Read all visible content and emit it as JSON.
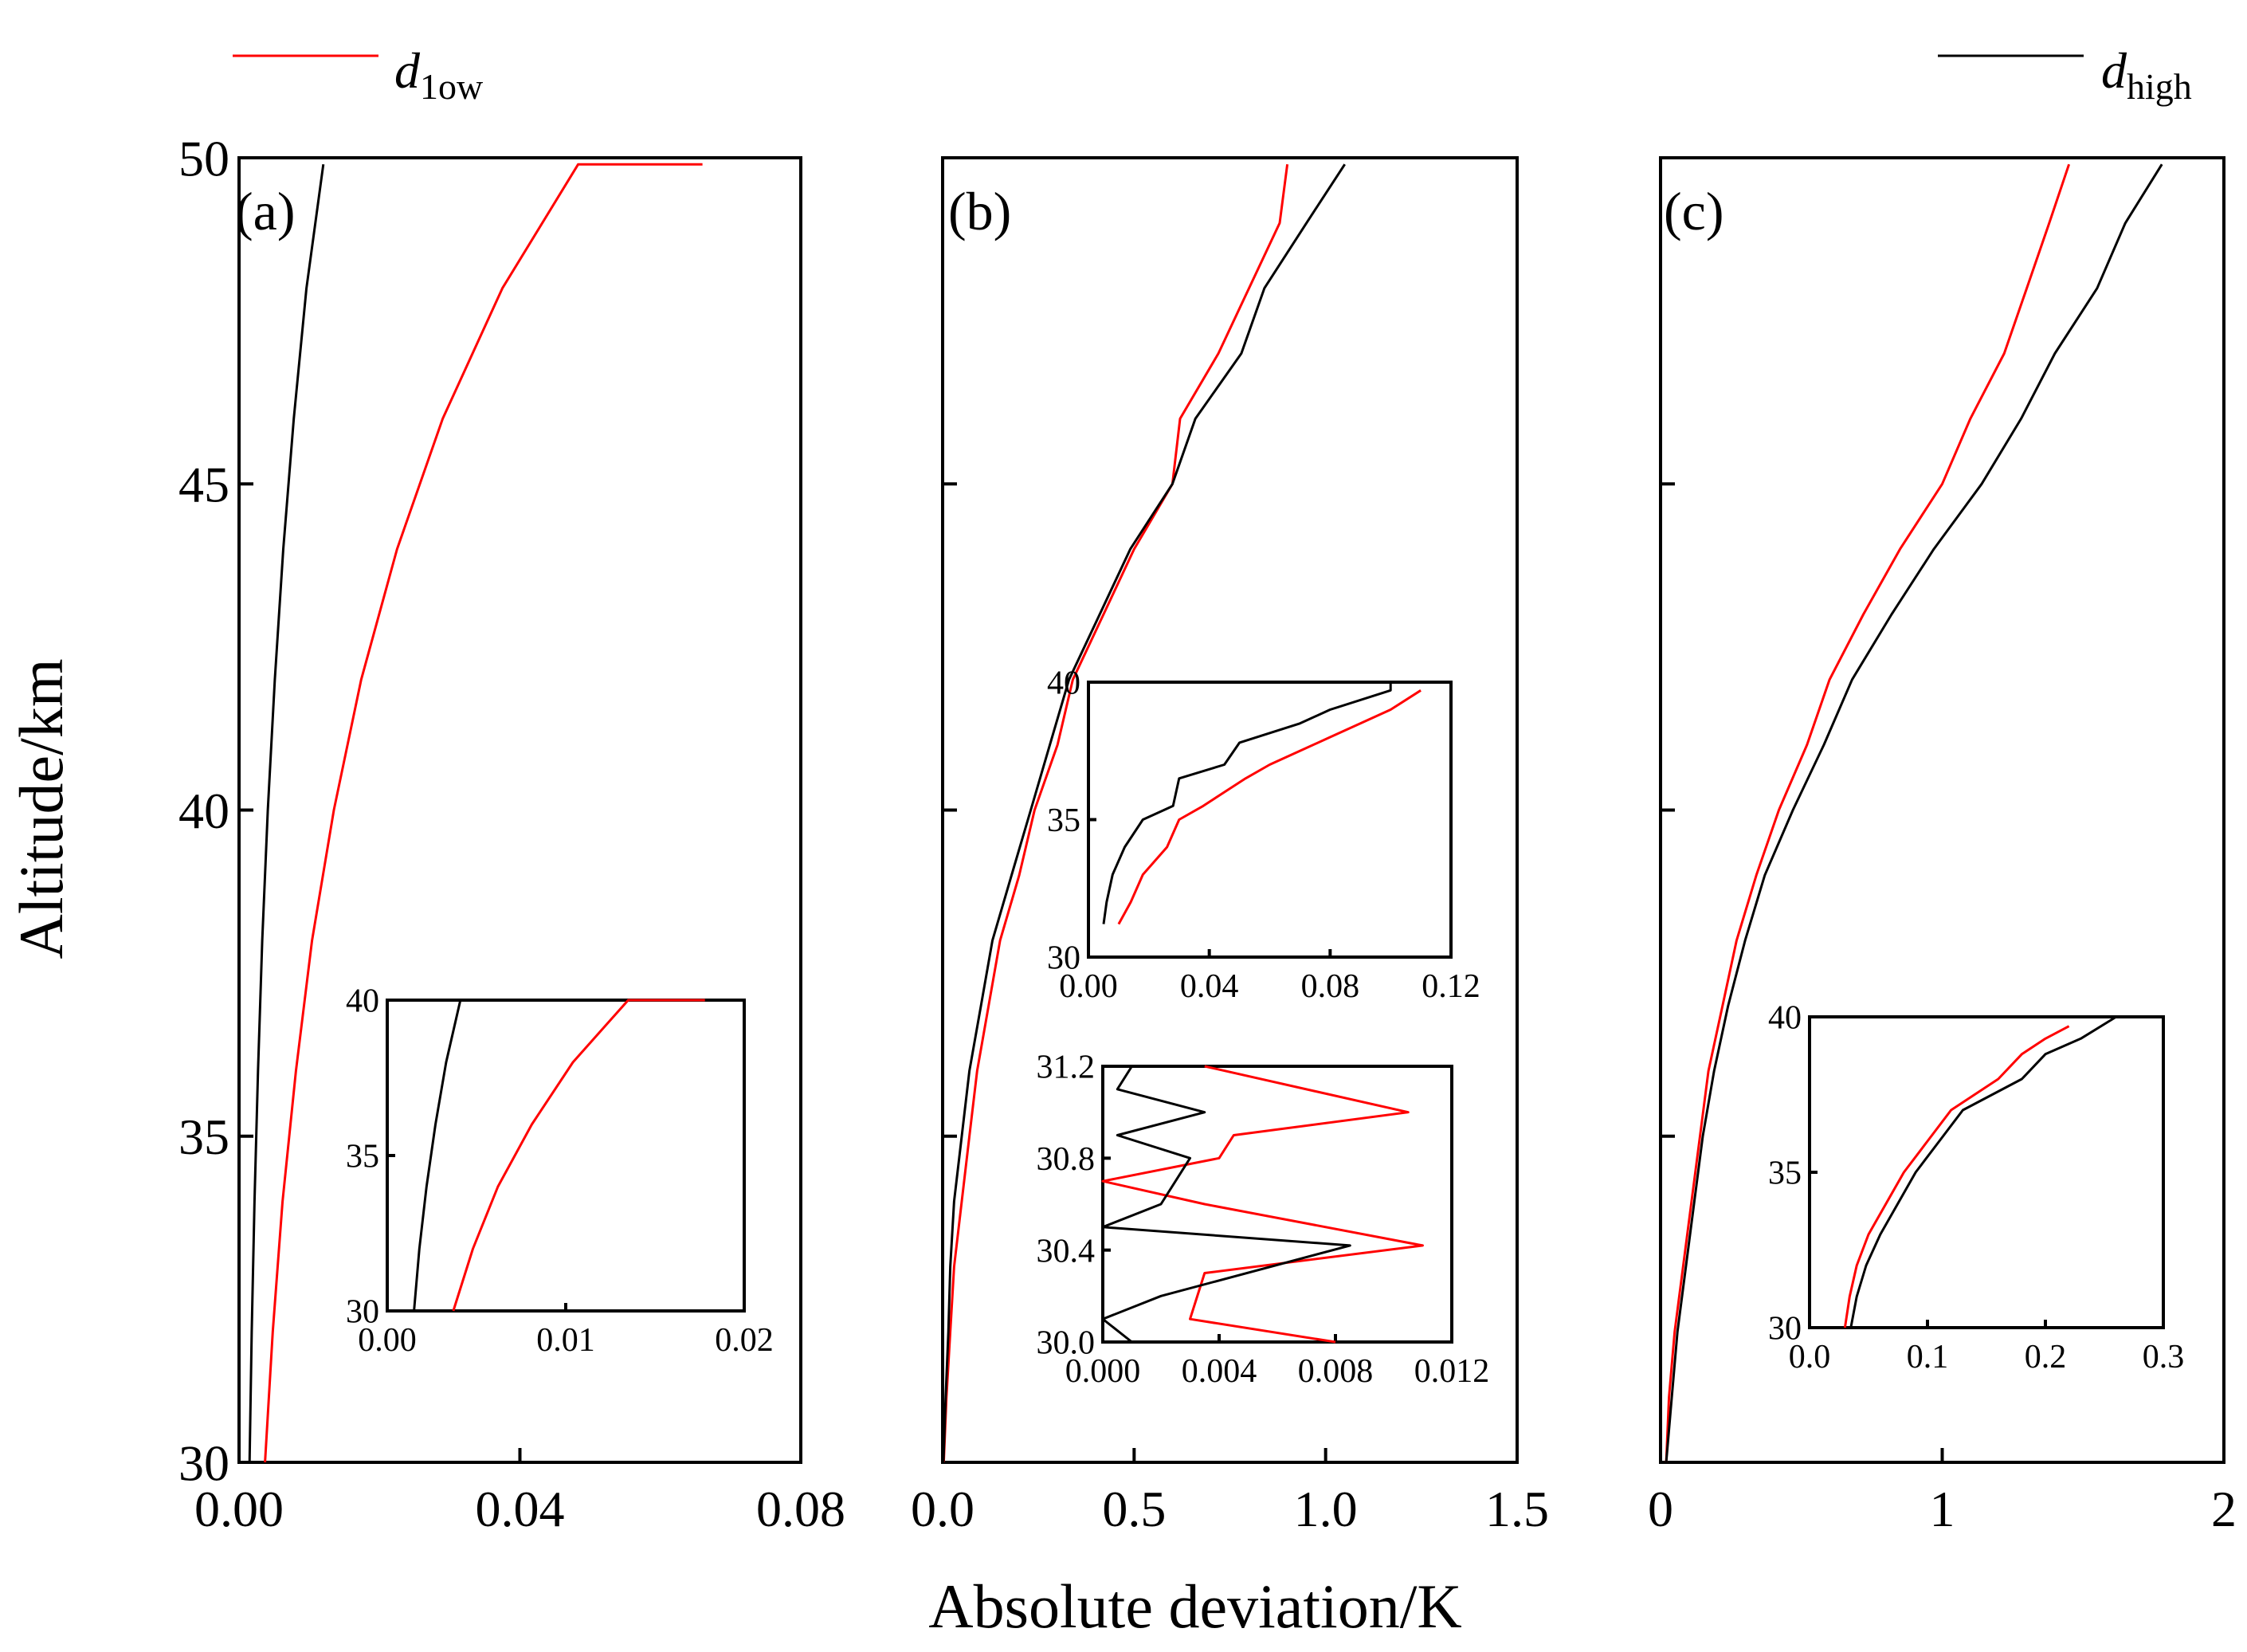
{
  "figure": {
    "xlabel": "Absolute deviation/K",
    "ylabel": "Altitude/km"
  },
  "legend": [
    {
      "symbol": "d",
      "subscript": "1ow",
      "color": "#ff0000",
      "series": "d_low"
    },
    {
      "symbol": "d",
      "subscript": "high",
      "color": "#000000",
      "series": "d_high"
    }
  ],
  "colors": {
    "d_low": "#ff0000",
    "d_high": "#000000"
  },
  "chart_data": [
    {
      "panel": "(a)",
      "type": "line",
      "xlim": [
        0,
        0.08
      ],
      "ylim": [
        30,
        50
      ],
      "xticks": [
        "0.00",
        "0.04",
        "0.08"
      ],
      "yticks": [
        "30",
        "35",
        "40",
        "45",
        "50"
      ],
      "series": [
        {
          "name": "d_high",
          "x": [
            0.0015,
            0.0018,
            0.0022,
            0.0027,
            0.0033,
            0.0041,
            0.0051,
            0.0063,
            0.0078,
            0.0096,
            0.012
          ],
          "y": [
            30,
            32,
            34,
            36,
            38,
            40,
            42,
            44,
            46,
            48,
            49.9
          ]
        },
        {
          "name": "d_low",
          "x": [
            0.0037,
            0.0048,
            0.0062,
            0.0081,
            0.0104,
            0.0135,
            0.0174,
            0.0225,
            0.029,
            0.0375,
            0.0483,
            0.066
          ],
          "y": [
            30,
            32,
            34,
            36,
            38,
            40,
            42,
            44,
            46,
            48,
            49.9,
            49.9
          ]
        }
      ],
      "inset": {
        "xlim": [
          0,
          0.02
        ],
        "ylim": [
          30,
          40
        ],
        "xticks": [
          "0.00",
          "0.01",
          "0.02"
        ],
        "yticks": [
          "30",
          "35",
          "40"
        ],
        "series": [
          {
            "name": "d_high",
            "x": [
              0.0015,
              0.0018,
              0.0022,
              0.0027,
              0.0033,
              0.0041
            ],
            "y": [
              30,
              32,
              34,
              36,
              38,
              40
            ]
          },
          {
            "name": "d_low",
            "x": [
              0.0037,
              0.0048,
              0.0062,
              0.0081,
              0.0104,
              0.0135,
              0.0178
            ],
            "y": [
              30,
              32,
              34,
              36,
              38,
              40,
              40
            ]
          }
        ]
      }
    },
    {
      "panel": "(b)",
      "type": "line",
      "xlim": [
        0,
        1.5
      ],
      "ylim": [
        30,
        50
      ],
      "xticks": [
        "0.0",
        "0.5",
        "1.0",
        "1.5"
      ],
      "yticks": [],
      "series": [
        {
          "name": "d_low",
          "x": [
            0.003,
            0.01,
            0.02,
            0.03,
            0.05,
            0.07,
            0.09,
            0.12,
            0.15,
            0.2,
            0.24,
            0.3,
            0.34,
            0.42,
            0.5,
            0.6,
            0.62,
            0.72,
            0.8,
            0.88,
            0.9
          ],
          "y": [
            30,
            31,
            32,
            33,
            34,
            35,
            36,
            37,
            38,
            39,
            40,
            41,
            42,
            43,
            44,
            45,
            46,
            47,
            48,
            49,
            49.9
          ]
        },
        {
          "name": "d_high",
          "x": [
            0.002,
            0.008,
            0.015,
            0.02,
            0.03,
            0.05,
            0.07,
            0.1,
            0.13,
            0.18,
            0.23,
            0.28,
            0.33,
            0.41,
            0.49,
            0.6,
            0.66,
            0.78,
            0.84,
            0.95,
            1.05
          ],
          "y": [
            30,
            31,
            32,
            33,
            34,
            35,
            36,
            37,
            38,
            39,
            40,
            41,
            42,
            43,
            44,
            45,
            46,
            47,
            48,
            49,
            49.9
          ]
        }
      ],
      "insets": [
        {
          "xlim": [
            0,
            0.12
          ],
          "ylim": [
            30,
            40
          ],
          "xticks": [
            "0.00",
            "0.04",
            "0.08",
            "0.12"
          ],
          "yticks": [
            "30",
            "35",
            "40"
          ],
          "series": [
            {
              "name": "d_low",
              "x": [
                0.01,
                0.014,
                0.018,
                0.026,
                0.03,
                0.038,
                0.045,
                0.052,
                0.06,
                0.07,
                0.08,
                0.09,
                0.1,
                0.11
              ],
              "y": [
                31.2,
                32,
                33,
                34,
                35,
                35.5,
                36,
                36.5,
                37,
                37.5,
                38,
                38.5,
                39,
                39.7
              ]
            },
            {
              "name": "d_high",
              "x": [
                0.005,
                0.006,
                0.008,
                0.012,
                0.018,
                0.028,
                0.03,
                0.045,
                0.05,
                0.07,
                0.08,
                0.1,
                0.1
              ],
              "y": [
                31.2,
                32,
                33,
                34,
                35,
                35.5,
                36.5,
                37,
                37.8,
                38.5,
                39,
                39.7,
                40
              ]
            }
          ]
        },
        {
          "xlim": [
            0,
            0.012
          ],
          "ylim": [
            30.0,
            31.2
          ],
          "xticks": [
            "0.000",
            "0.004",
            "0.008",
            "0.012"
          ],
          "yticks": [
            "30.0",
            "30.4",
            "30.8",
            "31.2"
          ],
          "series": [
            {
              "name": "d_low",
              "x": [
                0.008,
                0.003,
                0.0035,
                0.011,
                0.0035,
                0.0,
                0.004,
                0.0045,
                0.0105,
                0.0035
              ],
              "y": [
                30.0,
                30.1,
                30.3,
                30.42,
                30.6,
                30.7,
                30.8,
                30.9,
                31.0,
                31.2
              ]
            },
            {
              "name": "d_high",
              "x": [
                0.001,
                0.0,
                0.002,
                0.0085,
                0.0,
                0.002,
                0.003,
                0.0005,
                0.0035,
                0.0005,
                0.001
              ],
              "y": [
                30.0,
                30.1,
                30.2,
                30.42,
                30.5,
                30.6,
                30.8,
                30.9,
                31.0,
                31.1,
                31.2
              ]
            }
          ]
        }
      ]
    },
    {
      "panel": "(c)",
      "type": "line",
      "xlim": [
        0,
        2
      ],
      "ylim": [
        30,
        50
      ],
      "xticks": [
        "0",
        "1",
        "2"
      ],
      "yticks": [],
      "series": [
        {
          "name": "d_low",
          "x": [
            0.02,
            0.03,
            0.05,
            0.08,
            0.11,
            0.14,
            0.17,
            0.22,
            0.27,
            0.34,
            0.42,
            0.52,
            0.6,
            0.72,
            0.85,
            1.0,
            1.1,
            1.22,
            1.3,
            1.38,
            1.45
          ],
          "y": [
            30,
            31,
            32,
            33,
            34,
            35,
            36,
            37,
            38,
            39,
            40,
            41,
            42,
            43,
            44,
            45,
            46,
            47,
            48,
            49,
            49.9
          ]
        },
        {
          "name": "d_high",
          "x": [
            0.02,
            0.04,
            0.06,
            0.09,
            0.12,
            0.15,
            0.19,
            0.24,
            0.3,
            0.37,
            0.47,
            0.58,
            0.68,
            0.82,
            0.97,
            1.14,
            1.28,
            1.4,
            1.55,
            1.65,
            1.78
          ],
          "y": [
            30,
            31,
            32,
            33,
            34,
            35,
            36,
            37,
            38,
            39,
            40,
            41,
            42,
            43,
            44,
            45,
            46,
            47,
            48,
            49,
            49.9
          ]
        }
      ],
      "inset": {
        "xlim": [
          0,
          0.3
        ],
        "ylim": [
          30,
          40
        ],
        "xticks": [
          "0.0",
          "0.1",
          "0.2",
          "0.3"
        ],
        "yticks": [
          "30",
          "35",
          "40"
        ],
        "series": [
          {
            "name": "d_low",
            "x": [
              0.03,
              0.034,
              0.04,
              0.05,
              0.065,
              0.08,
              0.1,
              0.12,
              0.14,
              0.16,
              0.18,
              0.2,
              0.22
            ],
            "y": [
              30,
              31,
              32,
              33,
              34,
              35,
              36,
              37,
              37.5,
              38,
              38.8,
              39.3,
              39.7
            ]
          },
          {
            "name": "d_high",
            "x": [
              0.035,
              0.04,
              0.048,
              0.06,
              0.075,
              0.09,
              0.11,
              0.13,
              0.155,
              0.18,
              0.2,
              0.23,
              0.26
            ],
            "y": [
              30,
              31,
              32,
              33,
              34,
              35,
              36,
              37,
              37.5,
              38,
              38.8,
              39.3,
              40
            ]
          }
        ]
      }
    }
  ]
}
